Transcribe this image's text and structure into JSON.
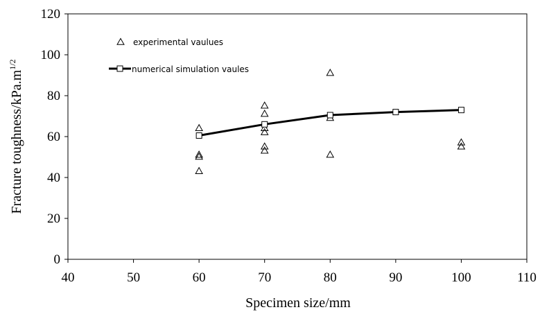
{
  "chart_data": {
    "type": "scatter",
    "title": "",
    "xlabel": "Specimen size/mm",
    "ylabel": "Fracture toughness/kPa.m",
    "ylabel_superscript": "1/2",
    "xlim": [
      40,
      110
    ],
    "ylim": [
      0,
      120
    ],
    "xticks": [
      "40",
      "50",
      "60",
      "70",
      "80",
      "90",
      "100",
      "110"
    ],
    "yticks": [
      "0",
      "20",
      "40",
      "60",
      "80",
      "100",
      "120"
    ],
    "grid": false,
    "legend_position": "top-left",
    "series": [
      {
        "name": "experimental vaulues",
        "marker": "triangle-open",
        "line": false,
        "points": [
          [
            60,
            64
          ],
          [
            60,
            51
          ],
          [
            60,
            50
          ],
          [
            60,
            43
          ],
          [
            70,
            75
          ],
          [
            70,
            71
          ],
          [
            70,
            64
          ],
          [
            70,
            62
          ],
          [
            70,
            55
          ],
          [
            70,
            53
          ],
          [
            80,
            91
          ],
          [
            80,
            69
          ],
          [
            80,
            51
          ],
          [
            100,
            57
          ],
          [
            100,
            55
          ]
        ]
      },
      {
        "name": "numerical simulation vaules",
        "marker": "square-open",
        "line": true,
        "points": [
          [
            60,
            60.5
          ],
          [
            70,
            66
          ],
          [
            80,
            70.5
          ],
          [
            90,
            72
          ],
          [
            100,
            73
          ]
        ]
      }
    ]
  }
}
